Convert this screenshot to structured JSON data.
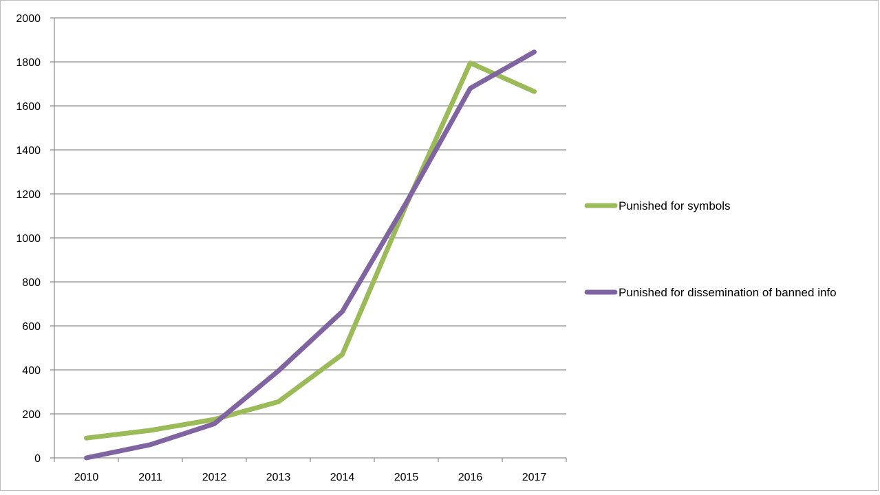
{
  "chart_data": {
    "type": "line",
    "title": "",
    "xlabel": "",
    "ylabel": "",
    "categories": [
      "2010",
      "2011",
      "2012",
      "2013",
      "2014",
      "2015",
      "2016",
      "2017"
    ],
    "ylim": [
      0,
      2000
    ],
    "yticks": [
      "0",
      "200",
      "400",
      "600",
      "800",
      "1000",
      "1200",
      "1400",
      "1600",
      "1800",
      "2000"
    ],
    "grid": "horizontal",
    "legend_position": "right",
    "series": [
      {
        "name": "Punished for symbols",
        "color": "#9bbb59",
        "values": [
          90,
          125,
          175,
          255,
          470,
          1150,
          1795,
          1665
        ]
      },
      {
        "name": "Punished for dissemination of banned info",
        "color": "#8064a2",
        "values": [
          0,
          60,
          155,
          395,
          665,
          1160,
          1680,
          1845
        ]
      }
    ]
  }
}
